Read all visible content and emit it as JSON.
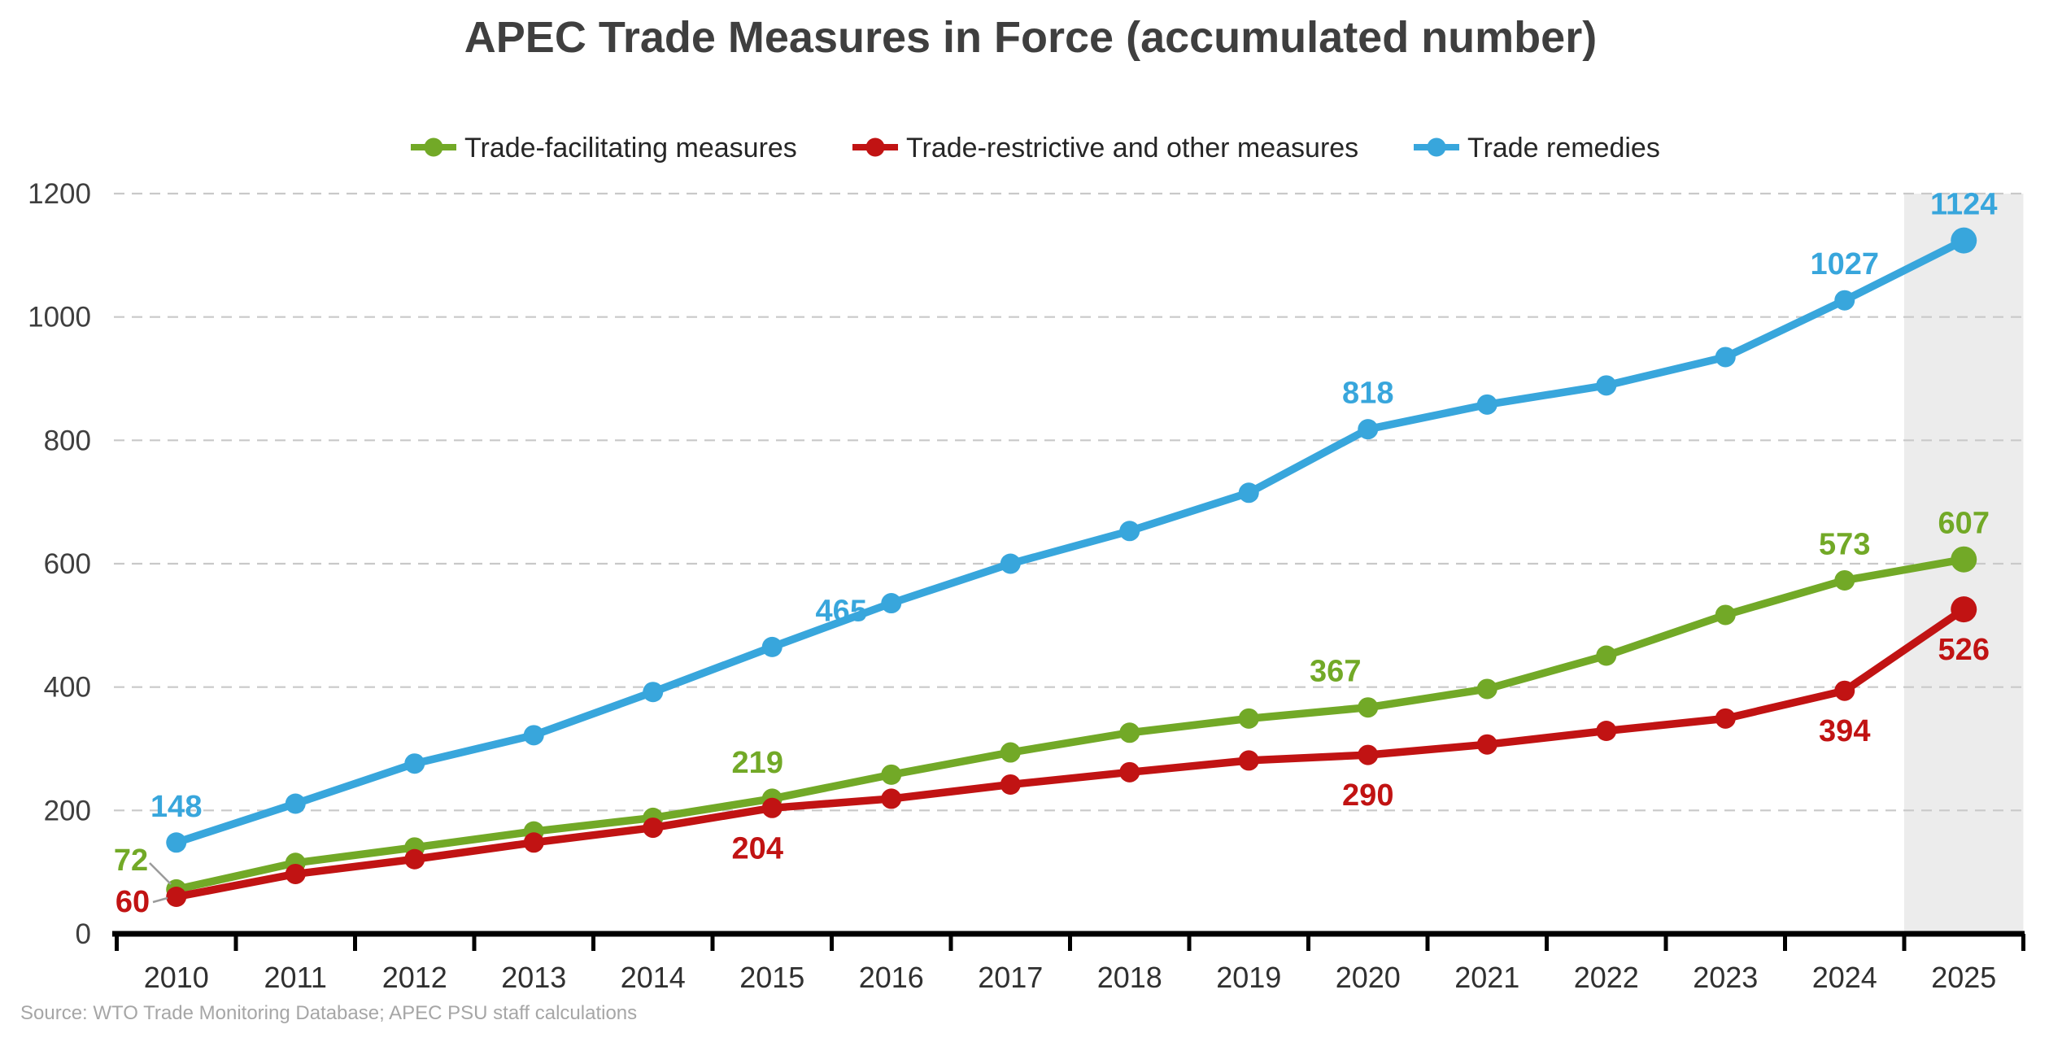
{
  "title": "APEC Trade Measures in Force (accumulated number)",
  "source_note": "Source: WTO Trade Monitoring Database; APEC PSU staff calculations",
  "legend": [
    {
      "label": "Trade-facilitating measures",
      "color": "#72a927"
    },
    {
      "label": "Trade-restrictive and other measures",
      "color": "#c11313"
    },
    {
      "label": "Trade remedies",
      "color": "#38a6dc"
    }
  ],
  "colors": {
    "gridline": "#c9c9c9",
    "axis": "#000000",
    "highlight_band": "#ececec",
    "leader_line": "#9b9b9b",
    "title_text": "#3f3f3f",
    "source_text": "#a6a6a6"
  },
  "chart_data": {
    "type": "line",
    "title": "APEC Trade Measures in Force (accumulated number)",
    "x": [
      2010,
      2011,
      2012,
      2013,
      2014,
      2015,
      2016,
      2017,
      2018,
      2019,
      2020,
      2021,
      2022,
      2023,
      2024,
      2025
    ],
    "series": [
      {
        "name": "Trade-facilitating measures",
        "color": "#72a927",
        "label_position": "above",
        "values": [
          72,
          115,
          140,
          166,
          188,
          219,
          258,
          294,
          326,
          349,
          367,
          397,
          451,
          517,
          573,
          607
        ]
      },
      {
        "name": "Trade-restrictive and other measures",
        "color": "#c11313",
        "label_position": "below",
        "values": [
          60,
          97,
          121,
          148,
          172,
          204,
          219,
          242,
          262,
          281,
          290,
          307,
          329,
          349,
          394,
          526
        ]
      },
      {
        "name": "Trade remedies",
        "color": "#38a6dc",
        "label_position": "above",
        "values": [
          148,
          211,
          276,
          322,
          392,
          465,
          536,
          600,
          653,
          715,
          818,
          858,
          889,
          935,
          1027,
          1124
        ]
      }
    ],
    "data_labels_shown_for_years": [
      2010,
      2015,
      2020,
      2024,
      2025
    ],
    "ylim": [
      0,
      1200
    ],
    "ytick_step": 200,
    "grid": "horizontal-dashed",
    "legend_position": "top",
    "highlight_band_year": 2025
  }
}
